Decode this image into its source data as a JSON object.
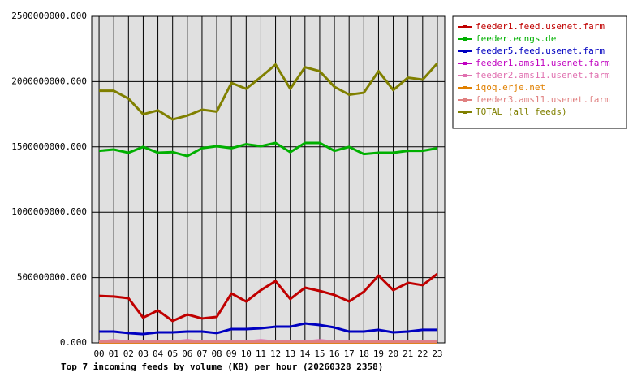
{
  "chart_data": {
    "type": "line",
    "title": "Top 7 incoming feeds by volume (KB) per hour (20260328 2358)",
    "categories": [
      "00",
      "01",
      "02",
      "03",
      "04",
      "05",
      "06",
      "07",
      "08",
      "09",
      "10",
      "11",
      "12",
      "13",
      "14",
      "15",
      "16",
      "17",
      "18",
      "19",
      "20",
      "21",
      "22",
      "23"
    ],
    "ylim": [
      0,
      2500000000
    ],
    "yticks": [
      {
        "value": 0,
        "label": "0.000"
      },
      {
        "value": 500000000,
        "label": "500000000.000"
      },
      {
        "value": 1000000000,
        "label": "1000000000.000"
      },
      {
        "value": 1500000000,
        "label": "1500000000.000"
      },
      {
        "value": 2000000000,
        "label": "2000000000.000"
      },
      {
        "value": 2500000000,
        "label": "2500000000.000"
      }
    ],
    "grid": true,
    "legend": "right",
    "series": [
      {
        "name": "feeder1.feed.usenet.farm",
        "color": "#c00000",
        "values": [
          360000000,
          355000000,
          342000000,
          193000000,
          249000000,
          168000000,
          218000000,
          187000000,
          199000000,
          379000000,
          317000000,
          404000000,
          473000000,
          336000000,
          423000000,
          398000000,
          367000000,
          317000000,
          392000000,
          516000000,
          404000000,
          460000000,
          442000000,
          529000000
        ]
      },
      {
        "name": "feeder.ecngs.de",
        "color": "#00b000",
        "values": [
          1470000000,
          1480000000,
          1455000000,
          1500000000,
          1455000000,
          1460000000,
          1430000000,
          1490000000,
          1505000000,
          1490000000,
          1520000000,
          1505000000,
          1530000000,
          1460000000,
          1530000000,
          1530000000,
          1470000000,
          1500000000,
          1445000000,
          1455000000,
          1455000000,
          1470000000,
          1470000000,
          1490000000
        ]
      },
      {
        "name": "feeder5.feed.usenet.farm",
        "color": "#0000c0",
        "values": [
          87000000,
          87000000,
          75000000,
          68000000,
          81000000,
          81000000,
          87000000,
          87000000,
          75000000,
          106000000,
          106000000,
          112000000,
          124000000,
          124000000,
          149000000,
          137000000,
          118000000,
          87000000,
          87000000,
          100000000,
          81000000,
          87000000,
          100000000,
          100000000
        ]
      },
      {
        "name": "feeder1.ams11.usenet.farm",
        "color": "#c000c0",
        "values": [
          5000000,
          5000000,
          5000000,
          5000000,
          5000000,
          5000000,
          5000000,
          5000000,
          5000000,
          5000000,
          5000000,
          5000000,
          5000000,
          5000000,
          5000000,
          5000000,
          5000000,
          5000000,
          5000000,
          5000000,
          5000000,
          5000000,
          5000000,
          5000000
        ]
      },
      {
        "name": "feeder2.ams11.usenet.farm",
        "color": "#e070b0",
        "values": [
          10000000,
          20000000,
          10000000,
          10000000,
          10000000,
          10000000,
          20000000,
          10000000,
          10000000,
          10000000,
          10000000,
          20000000,
          10000000,
          10000000,
          10000000,
          20000000,
          10000000,
          10000000,
          10000000,
          10000000,
          10000000,
          10000000,
          10000000,
          10000000
        ]
      },
      {
        "name": "iqoq.erje.net",
        "color": "#e08000",
        "values": [
          3000000,
          3000000,
          3000000,
          3000000,
          3000000,
          3000000,
          3000000,
          3000000,
          3000000,
          3000000,
          3000000,
          3000000,
          3000000,
          3000000,
          3000000,
          3000000,
          3000000,
          3000000,
          3000000,
          3000000,
          3000000,
          3000000,
          3000000,
          3000000
        ]
      },
      {
        "name": "feeder3.ams11.usenet.farm",
        "color": "#e08080",
        "values": [
          8000000,
          8000000,
          8000000,
          8000000,
          8000000,
          8000000,
          8000000,
          8000000,
          8000000,
          8000000,
          8000000,
          8000000,
          8000000,
          8000000,
          8000000,
          8000000,
          8000000,
          8000000,
          8000000,
          8000000,
          8000000,
          8000000,
          8000000,
          8000000
        ]
      },
      {
        "name": "TOTAL (all feeds)",
        "color": "#808000",
        "values": [
          1930000000,
          1930000000,
          1870000000,
          1750000000,
          1780000000,
          1710000000,
          1740000000,
          1785000000,
          1770000000,
          1990000000,
          1945000000,
          2035000000,
          2130000000,
          1945000000,
          2110000000,
          2080000000,
          1960000000,
          1900000000,
          1915000000,
          2080000000,
          1935000000,
          2030000000,
          2015000000,
          2140000000
        ]
      }
    ]
  }
}
